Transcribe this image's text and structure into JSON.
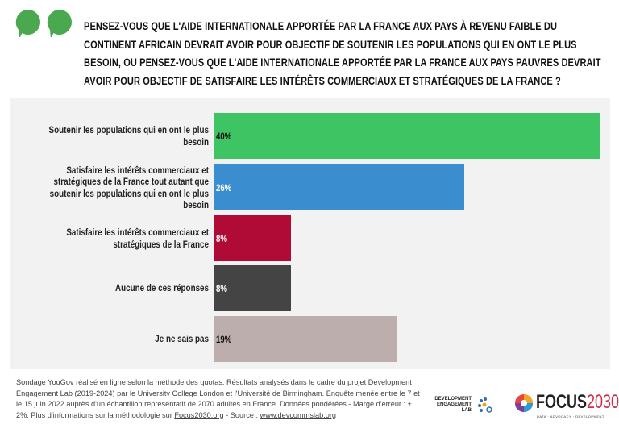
{
  "title": "PENSEZ-VOUS QUE L'AIDE INTERNATIONALE APPORTÉE PAR LA FRANCE AUX PAYS À REVENU FAIBLE DU CONTINENT AFRICAIN DEVRAIT AVOIR POUR OBJECTIF DE SOUTENIR LES POPULATIONS QUI EN ONT LE PLUS BESOIN, OU PENSEZ-VOUS QUE L'AIDE INTERNATIONALE APPORTÉE PAR LA FRANCE AUX PAYS PAUVRES DEVRAIT AVOIR POUR OBJECTIF DE SATISFAIRE LES INTÉRÊTS COMMERCIAUX ET STRATÉGIQUES DE LA FRANCE ?",
  "accent": "#4aa84f",
  "chart_data": {
    "type": "bar",
    "orientation": "horizontal",
    "categories": [
      "Soutenir les populations qui en ont le plus besoin",
      "Satisfaire les intérêts commerciaux et stratégiques de la France tout autant que soutenir les populations qui en ont le plus besoin",
      "Satisfaire les intérêts commerciaux et stratégiques de la France",
      "Aucune de ces réponses",
      "Je ne sais pas"
    ],
    "values": [
      40,
      26,
      8,
      8,
      19
    ],
    "labels": [
      "40%",
      "26%",
      "8%",
      "8%",
      "19%"
    ],
    "colors": [
      "#3ec462",
      "#3a8ecf",
      "#b00a36",
      "#444444",
      "#bcaeac"
    ],
    "label_colors": [
      "#111111",
      "#ffffff",
      "#ffffff",
      "#ffffff",
      "#111111"
    ],
    "xlim": [
      0,
      40
    ],
    "grid": false
  },
  "footer": {
    "text": "Sondage YouGov réalisé en ligne selon la méthode des quotas. Résultats analysés dans le cadre du projet Development Engagement Lab (2019-2024) par le University College London et l'Université de Birmingham. Enquête menée entre le 7 et le 15 juin 2022 auprès d'un échantillon représentatif de 2070 adultes en France. Données pondérées - Marge d'erreur : ± 2%. Plus d'informations sur la méthodologie sur ",
    "link1": "Focus2030.org",
    "sep": " - Source : ",
    "link2": "www.devcommslab.org"
  },
  "logos": {
    "del": "DEVELOPMENT ENGAGEMENT LAB",
    "focus_a": "FOCUS",
    "focus_b": "2030",
    "focus_tag": "DATA · ADVOCACY · DEVELOPMENT"
  }
}
